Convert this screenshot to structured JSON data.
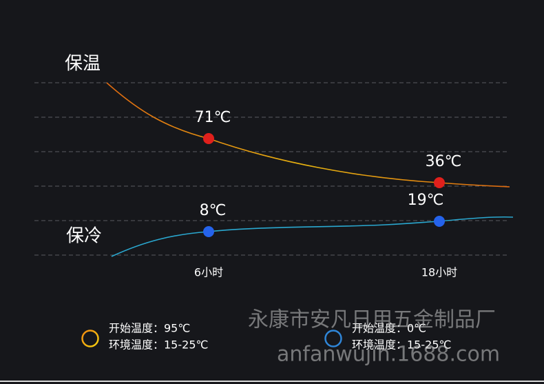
{
  "chart_data": {
    "type": "line",
    "categories": [
      "6小时",
      "18小时"
    ],
    "series": [
      {
        "name": "保温",
        "color": "#e0201c",
        "values": [
          71,
          36
        ],
        "value_labels": [
          "71℃",
          "36℃"
        ]
      },
      {
        "name": "保冷",
        "color": "#2563eb",
        "values": [
          8,
          19
        ],
        "value_labels": [
          "8℃",
          "19℃"
        ]
      }
    ]
  },
  "legend": [
    {
      "lines": [
        "开始温度：95℃",
        "环境温度：15-25℃"
      ]
    },
    {
      "lines": [
        "开始温度：0℃",
        "环境温度：15-25℃"
      ]
    }
  ],
  "watermark": [
    "永康市安凡日用五金制品厂",
    "anfanwujin.1688.com"
  ]
}
